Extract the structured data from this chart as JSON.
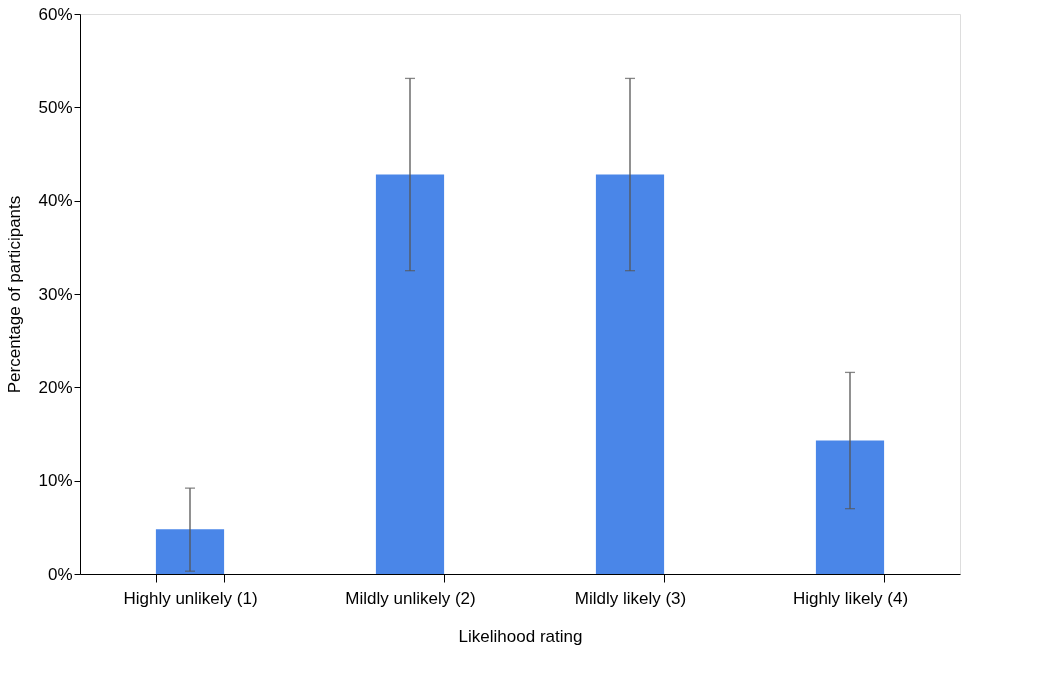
{
  "chart_data": {
    "type": "bar",
    "xlabel": "Likelihood rating",
    "ylabel": "Percentage of participants",
    "categories": [
      "Highly unlikely (1)",
      "Mildly unlikely (2)",
      "Mildly likely (3)",
      "Highly likely (4)"
    ],
    "values": [
      4.8,
      42.8,
      42.8,
      14.3
    ],
    "errors": [
      [
        0.3,
        9.2
      ],
      [
        32.5,
        53.1
      ],
      [
        32.5,
        53.1
      ],
      [
        7.0,
        21.6
      ]
    ],
    "color": "#4a86e8",
    "ylim": [
      0,
      60
    ],
    "yticks": [
      {
        "value": 0,
        "label": "0%"
      },
      {
        "value": 10,
        "label": "10%"
      },
      {
        "value": 20,
        "label": "20%"
      },
      {
        "value": 30,
        "label": "30%"
      },
      {
        "value": 40,
        "label": "40%"
      },
      {
        "value": 50,
        "label": "50%"
      },
      {
        "value": 60,
        "label": "60%"
      }
    ]
  }
}
